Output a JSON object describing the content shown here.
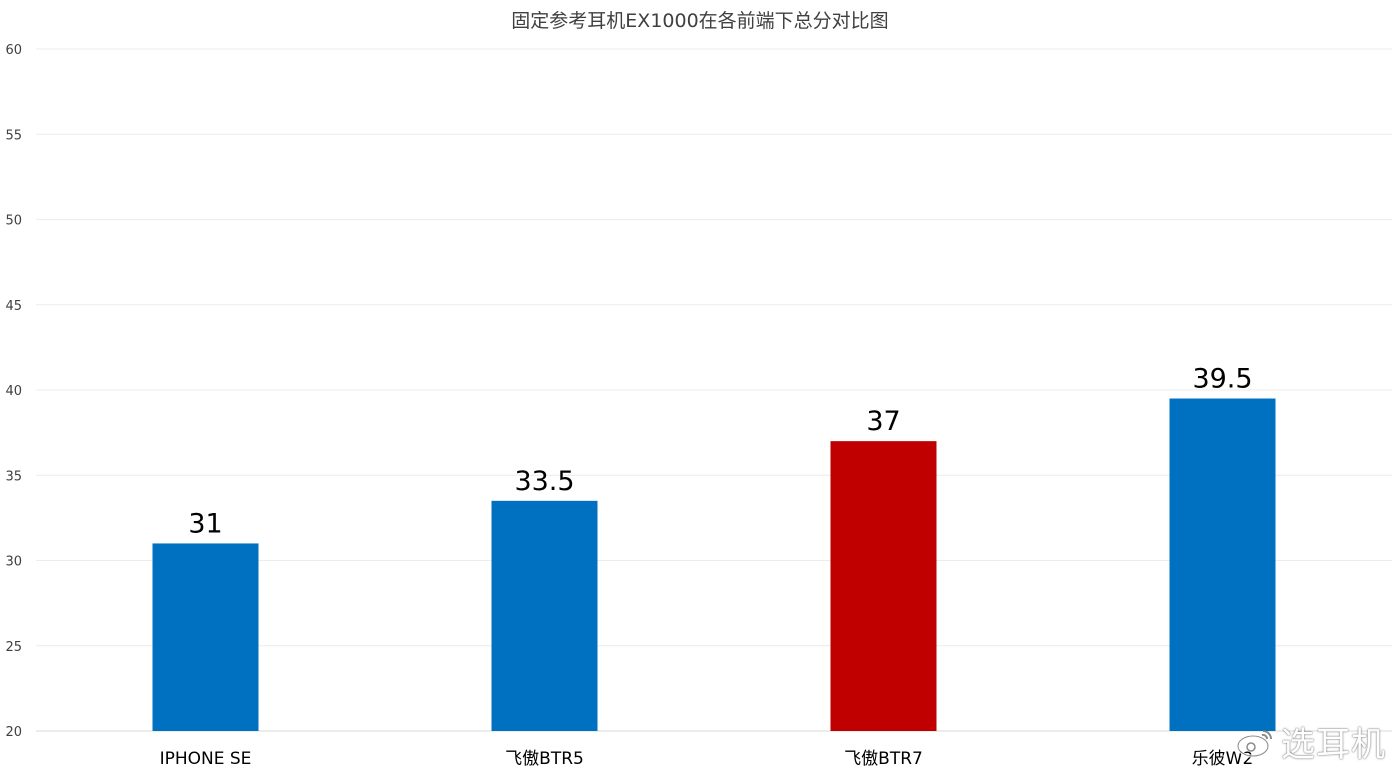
{
  "chart_data": {
    "type": "bar",
    "title": "固定参考耳机EX1000在各前端下总分对比图",
    "xlabel": "",
    "ylabel": "",
    "categories": [
      "IPHONE SE",
      "飞傲BTR5",
      "飞傲BTR7",
      "乐彼W2"
    ],
    "values": [
      31,
      33.5,
      37,
      39.5
    ],
    "data_labels": [
      "31",
      "33.5",
      "37",
      "39.5"
    ],
    "bar_colors": [
      "#0070C0",
      "#0070C0",
      "#C00000",
      "#0070C0"
    ],
    "ylim": [
      20,
      60
    ],
    "yticks": [
      "20",
      "25",
      "30",
      "35",
      "40",
      "45",
      "50",
      "55",
      "60"
    ],
    "grid": true,
    "legend": "none"
  },
  "watermark": {
    "icon": "weibo-icon",
    "text": "选耳机"
  }
}
